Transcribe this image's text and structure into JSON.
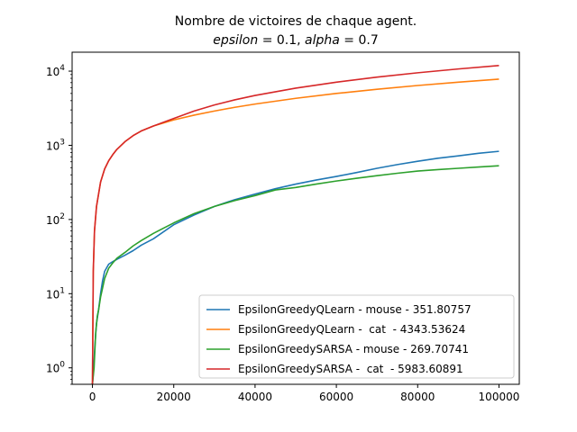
{
  "chart_data": {
    "type": "line",
    "title": "Nombre de victoires de chaque agent.",
    "subtitle": "epsilon = 0.1, alpha = 0.7",
    "subtitle_parts": {
      "eps_name": "epsilon",
      "eps_value": " = 0.1, ",
      "alpha_name": "alpha",
      "alpha_value": " = 0.7"
    },
    "xlabel": "",
    "ylabel": "",
    "yscale": "log",
    "xlim": [
      -5000,
      105000
    ],
    "ylim": [
      0.6,
      18000
    ],
    "x_ticks": [
      0,
      20000,
      40000,
      60000,
      80000,
      100000
    ],
    "x_tick_labels": [
      "0",
      "20000",
      "40000",
      "60000",
      "80000",
      "100000"
    ],
    "y_ticks": [
      1,
      10,
      100,
      1000,
      10000
    ],
    "y_tick_labels": [
      {
        "base": "10",
        "exp": "0"
      },
      {
        "base": "10",
        "exp": "1"
      },
      {
        "base": "10",
        "exp": "2"
      },
      {
        "base": "10",
        "exp": "3"
      },
      {
        "base": "10",
        "exp": "4"
      }
    ],
    "grid": false,
    "legend_position": "lower-right",
    "series": [
      {
        "name": "EpsilonGreedyQLearn - mouse - 351.80757",
        "color": "#1f77b4",
        "x": [
          0,
          300,
          600,
          1000,
          1500,
          2000,
          2500,
          3000,
          4000,
          5000,
          6000,
          8000,
          10000,
          12000,
          15000,
          20000,
          25000,
          30000,
          35000,
          40000,
          45000,
          50000,
          55000,
          60000,
          65000,
          70000,
          75000,
          80000,
          85000,
          90000,
          95000,
          100000
        ],
        "y": [
          0.6,
          1,
          2,
          4,
          6,
          10,
          15,
          20,
          25,
          27,
          29,
          33,
          38,
          45,
          55,
          85,
          115,
          150,
          185,
          220,
          260,
          300,
          340,
          380,
          430,
          490,
          550,
          610,
          670,
          720,
          780,
          830
        ]
      },
      {
        "name": "EpsilonGreedyQLearn -  cat  - 4343.53624",
        "color": "#ff7f0e",
        "x": [
          0,
          200,
          500,
          1000,
          2000,
          3000,
          4000,
          5000,
          6000,
          8000,
          10000,
          12000,
          15000,
          20000,
          25000,
          30000,
          35000,
          40000,
          50000,
          60000,
          70000,
          80000,
          90000,
          100000
        ],
        "y": [
          0.6,
          20,
          70,
          150,
          320,
          480,
          620,
          750,
          880,
          1120,
          1350,
          1560,
          1820,
          2200,
          2550,
          2900,
          3250,
          3600,
          4300,
          5000,
          5700,
          6400,
          7100,
          7800
        ]
      },
      {
        "name": "EpsilonGreedySARSA - mouse - 269.70741",
        "color": "#2ca02c",
        "x": [
          0,
          400,
          800,
          1200,
          1500,
          2000,
          2500,
          3000,
          4000,
          5000,
          6000,
          8000,
          10000,
          12000,
          15000,
          20000,
          25000,
          30000,
          35000,
          40000,
          45000,
          50000,
          55000,
          60000,
          65000,
          70000,
          75000,
          80000,
          85000,
          90000,
          95000,
          100000
        ],
        "y": [
          0.6,
          1,
          3,
          5,
          6,
          9,
          12,
          16,
          22,
          26,
          30,
          36,
          44,
          52,
          65,
          90,
          120,
          150,
          180,
          210,
          250,
          270,
          300,
          330,
          360,
          390,
          420,
          450,
          470,
          490,
          510,
          530
        ]
      },
      {
        "name": "EpsilonGreedySARSA -  cat  - 5983.60891",
        "color": "#d62728",
        "x": [
          0,
          200,
          500,
          1000,
          2000,
          3000,
          4000,
          5000,
          6000,
          8000,
          10000,
          12000,
          15000,
          20000,
          25000,
          30000,
          35000,
          40000,
          50000,
          60000,
          70000,
          80000,
          90000,
          100000
        ],
        "y": [
          0.6,
          20,
          70,
          150,
          320,
          480,
          620,
          750,
          880,
          1120,
          1350,
          1560,
          1820,
          2300,
          2900,
          3500,
          4100,
          4700,
          5900,
          7100,
          8300,
          9500,
          10700,
          11900
        ]
      }
    ]
  }
}
